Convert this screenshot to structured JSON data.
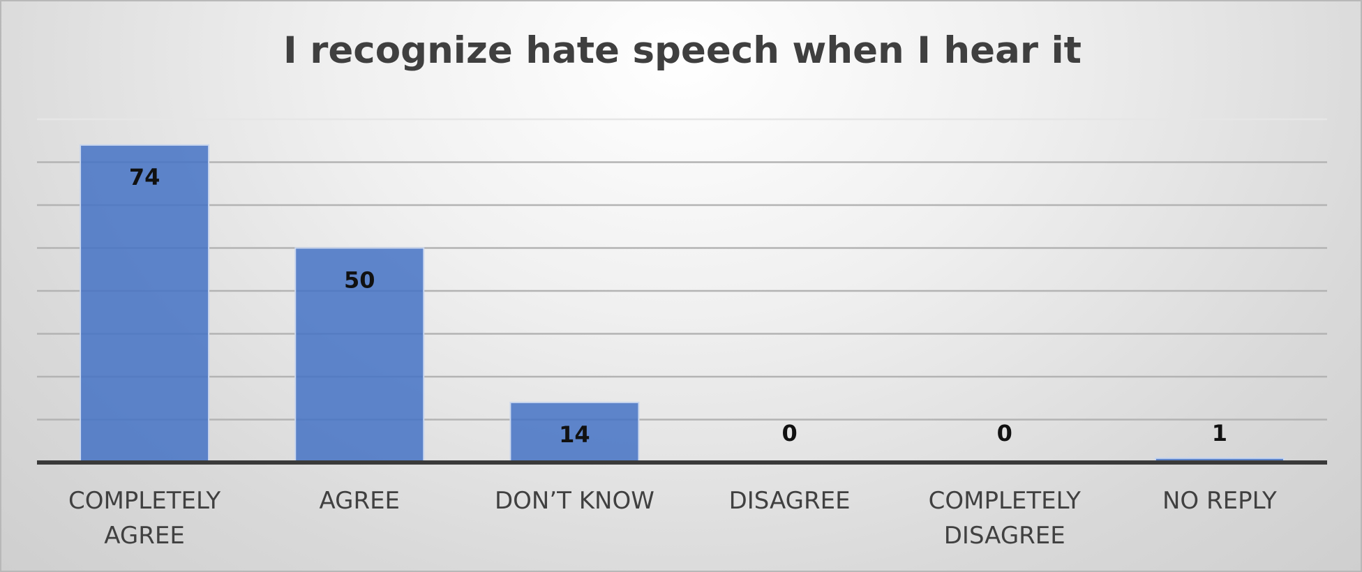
{
  "chart_data": {
    "type": "bar",
    "title": "I recognize hate speech when I hear it",
    "categories": [
      "COMPLETELY AGREE",
      "AGREE",
      "DON’T KNOW",
      "DISAGREE",
      "COMPLETELY DISAGREE",
      "NO REPLY"
    ],
    "category_lines": [
      [
        "COMPLETELY",
        "AGREE"
      ],
      [
        "AGREE"
      ],
      [
        "DON’T KNOW"
      ],
      [
        "DISAGREE"
      ],
      [
        "COMPLETELY",
        "DISAGREE"
      ],
      [
        "NO REPLY"
      ]
    ],
    "values": [
      74,
      50,
      14,
      0,
      0,
      1
    ],
    "data_labels": [
      "74",
      "50",
      "14",
      "0",
      "0",
      "1"
    ],
    "xlabel": "",
    "ylabel": "",
    "ylim": [
      0,
      80
    ],
    "grid": true,
    "legend": "none",
    "bar_color": "#4472c4"
  }
}
